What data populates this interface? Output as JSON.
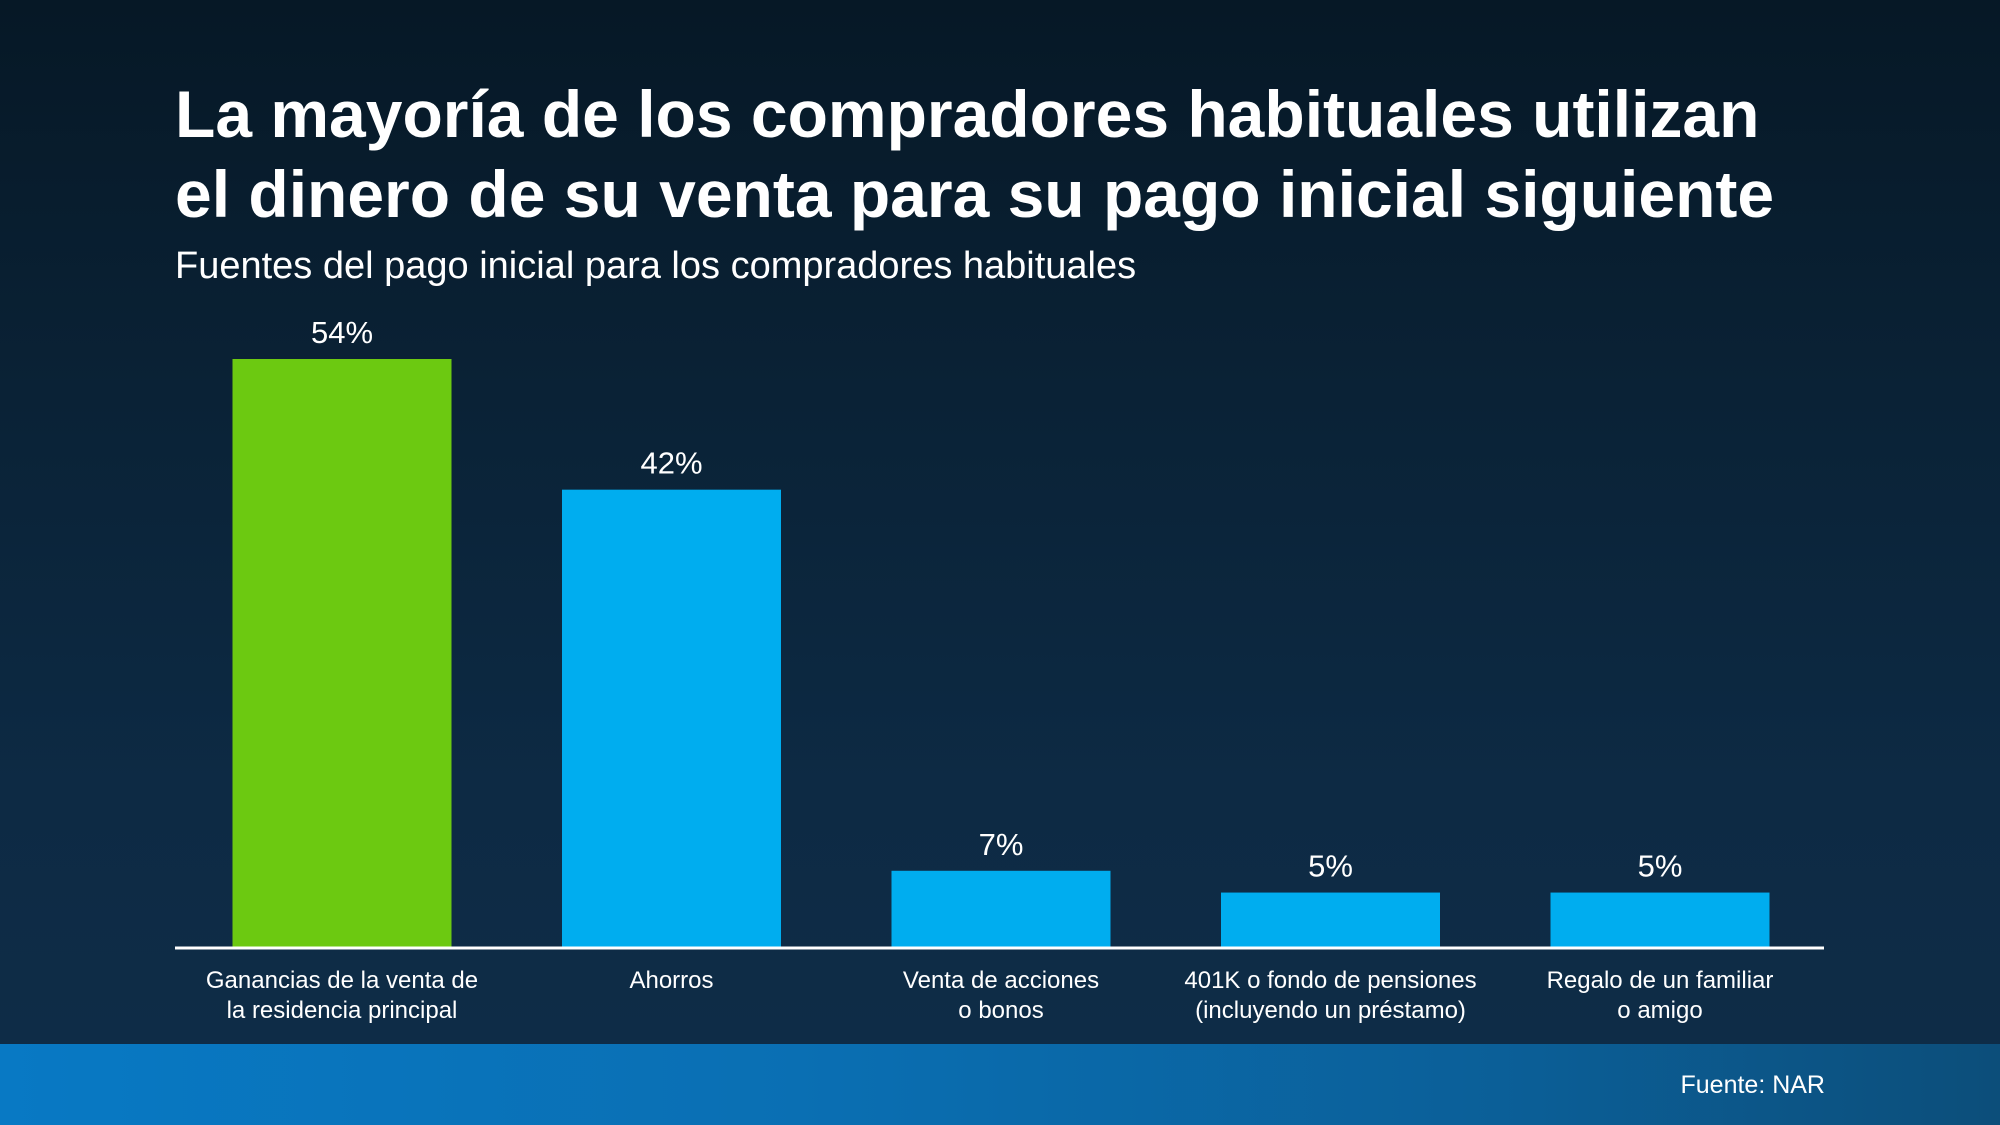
{
  "header": {
    "title_line1": "La mayoría de los compradores habituales utilizan",
    "title_line2": "el dinero de su venta para su pago inicial siguiente",
    "subtitle": "Fuentes del pago inicial para los compradores habituales"
  },
  "footer": {
    "source": "Fuente: NAR"
  },
  "colors": {
    "highlight": "#6cc911",
    "bar": "#00adef",
    "axis": "#ffffff"
  },
  "chart_data": {
    "type": "bar",
    "categories": [
      [
        "Ganancias de la venta de",
        "la residencia principal"
      ],
      [
        "Ahorros"
      ],
      [
        "Venta de acciones",
        "o bonos"
      ],
      [
        "401K o fondo de pensiones",
        "(incluyendo un préstamo)"
      ],
      [
        "Regalo de un familiar",
        "o amigo"
      ]
    ],
    "values": [
      54,
      42,
      7,
      5,
      5
    ],
    "value_labels": [
      "54%",
      "42%",
      "7%",
      "5%",
      "5%"
    ],
    "highlight_index": 0,
    "ylim": [
      0,
      54
    ],
    "grid": false,
    "legend": "none"
  }
}
